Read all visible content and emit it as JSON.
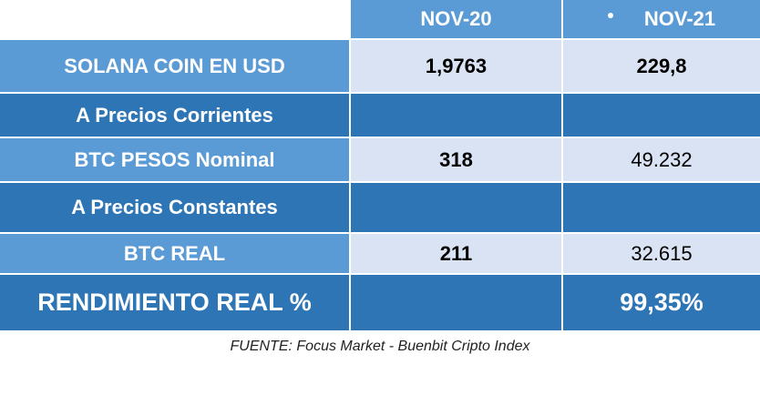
{
  "table": {
    "columns": [
      "",
      "NOV-20",
      "NOV-21"
    ],
    "rows": [
      {
        "label": "SOLANA COIN EN USD",
        "nov20": "1,9763",
        "nov21": "229,8"
      },
      {
        "label": "A Precios Corrientes",
        "nov20": "",
        "nov21": ""
      },
      {
        "label": "BTC PESOS Nominal",
        "nov20": "318",
        "nov21": "49.232"
      },
      {
        "label": "A Precios Constantes",
        "nov20": "",
        "nov21": ""
      },
      {
        "label": "BTC REAL",
        "nov20": "211",
        "nov21": "32.615"
      },
      {
        "label": "RENDIMIENTO REAL %",
        "nov20": "",
        "nov21": "99,35%"
      }
    ]
  },
  "source": "FUENTE: Focus Market - Buenbit Cripto Index",
  "colors": {
    "header_blue": "#5b9bd5",
    "dark_blue": "#2e75b6",
    "light_cell": "#dae3f3"
  }
}
